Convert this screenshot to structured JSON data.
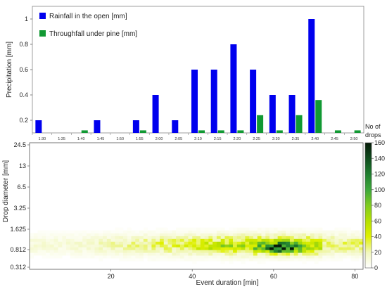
{
  "chart_data": [
    {
      "type": "bar",
      "ylabel": "Precipitation [mm]",
      "categories": [
        "1:30",
        "1:35",
        "1:40",
        "1:45",
        "1:50",
        "1:55",
        "2:00",
        "2:05",
        "2:10",
        "2:15",
        "2:20",
        "2:25",
        "2:30",
        "2:35",
        "2:40",
        "2:45",
        "2:50"
      ],
      "yticks": [
        "0.2",
        "0.4",
        "0.6",
        "0.8",
        "1"
      ],
      "ylim": [
        0.1,
        1.1
      ],
      "legend_position": "top-left",
      "series": [
        {
          "name": "Rainfall in the open [mm]",
          "color": "#0000ee",
          "values": [
            0.2,
            0,
            0,
            0.2,
            0,
            0.2,
            0.4,
            0.2,
            0.6,
            0.6,
            0.8,
            0.6,
            0.4,
            0.4,
            1.0,
            0,
            0
          ]
        },
        {
          "name": "Throughfall under pine [mm]",
          "color": "#119933",
          "values": [
            0,
            0,
            0.12,
            0,
            0,
            0.12,
            0,
            0,
            0.12,
            0.12,
            0.12,
            0.24,
            0.12,
            0.24,
            0.36,
            0.12,
            0.12
          ]
        }
      ]
    },
    {
      "type": "heatmap",
      "xlabel": "Event duration [min]",
      "ylabel": "Drop diameter [mm]",
      "xticks": [
        "20",
        "40",
        "60",
        "80"
      ],
      "yticks": [
        "0.312",
        "0.812",
        "1.625",
        "3.25",
        "6.5",
        "13",
        "24.5"
      ],
      "xlim": [
        0,
        82
      ],
      "colorbar": {
        "title_line1": "No of",
        "title_line2": "drops",
        "ticks": [
          "0",
          "20",
          "40",
          "60",
          "80",
          "100",
          "120",
          "140",
          "160"
        ],
        "range": [
          0,
          160
        ]
      },
      "notes": "2-D histogram of drop counts per minute and diameter class; densest region around 55-68 min and 0.6-1.8 mm (about 100-160 drops), background mostly below 40 drops"
    }
  ]
}
